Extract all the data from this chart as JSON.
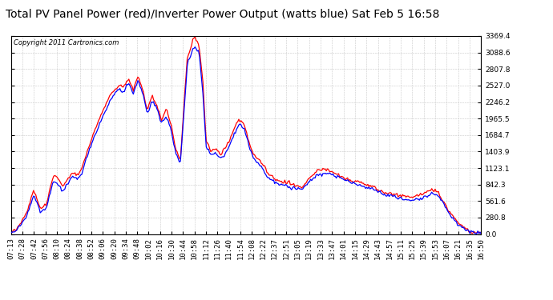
{
  "title": "Total PV Panel Power (red)/Inverter Power Output (watts blue) Sat Feb 5 16:58",
  "copyright": "Copyright 2011 Cartronics.com",
  "yticks": [
    0.0,
    280.8,
    561.6,
    842.3,
    1123.1,
    1403.9,
    1684.7,
    1965.5,
    2246.2,
    2527.0,
    2807.8,
    3088.6,
    3369.4
  ],
  "ymax": 3369.4,
  "ymin": 0.0,
  "xtick_labels": [
    "07:13",
    "07:28",
    "07:42",
    "07:56",
    "08:10",
    "08:24",
    "08:38",
    "08:52",
    "09:06",
    "09:20",
    "09:34",
    "09:48",
    "10:02",
    "10:16",
    "10:30",
    "10:44",
    "10:58",
    "11:12",
    "11:26",
    "11:40",
    "11:54",
    "12:08",
    "12:22",
    "12:37",
    "12:51",
    "13:05",
    "13:19",
    "13:33",
    "13:47",
    "14:01",
    "14:15",
    "14:29",
    "14:43",
    "14:57",
    "15:11",
    "15:25",
    "15:39",
    "15:53",
    "16:07",
    "16:21",
    "16:35",
    "16:50"
  ],
  "bg_color": "#ffffff",
  "plot_bg_color": "#ffffff",
  "grid_color": "#bbbbbb",
  "red_color": "#ff0000",
  "blue_color": "#0000ff",
  "line_width": 0.9,
  "title_fontsize": 10,
  "tick_fontsize": 6.5
}
